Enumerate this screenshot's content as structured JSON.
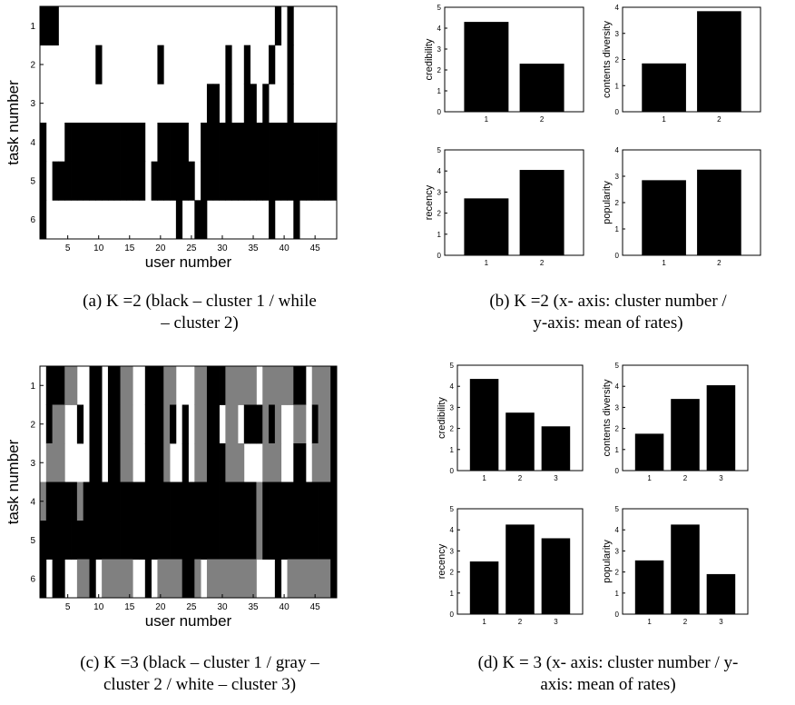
{
  "captions": {
    "a": [
      "(a)  K =2 (black – cluster 1 / while",
      "– cluster 2)"
    ],
    "b": [
      "(b)  K =2 (x- axis: cluster number /",
      "y-axis: mean of rates)"
    ],
    "c": [
      "(c) K =3 (black – cluster 1 / gray –",
      "cluster 2 / white – cluster 3)"
    ],
    "d": [
      "(d) K = 3 (x- axis: cluster number / y-",
      "axis: mean of rates)"
    ]
  },
  "colors": {
    "black": "#000000",
    "gray": "#808080",
    "white": "#ffffff"
  },
  "chart_data": [
    {
      "id": "a",
      "type": "heatmap",
      "xlabel": "user number",
      "ylabel": "task number",
      "x_ticks": [
        5,
        10,
        15,
        20,
        25,
        30,
        35,
        40,
        45
      ],
      "y_ticks": [
        1,
        2,
        3,
        4,
        5,
        6
      ],
      "n_users": 48,
      "n_tasks": 6,
      "legend_text": "black – cluster 1 / while – cluster 2",
      "rows": [
        "000000000000000000000000000000000000000000000000",
        "000000000000000000000000000000000000000000000000",
        "000000000000000000000000000000000000000000000000",
        "111111111111111111111111111111111111111111111111",
        "111111111111111111111111111111111111111111111111",
        "000000000000000000000000000000000000000000000000"
      ],
      "cells": {
        "1": [
          [
            1,
            2
          ],
          [
            3,
            3
          ],
          [
            39,
            39
          ],
          [
            41,
            41
          ]
        ],
        "2": [
          [
            10,
            10
          ],
          [
            20,
            20
          ],
          [
            31,
            31
          ],
          [
            34,
            34
          ],
          [
            38,
            38
          ],
          [
            41,
            41
          ]
        ],
        "3": [
          [
            28,
            28
          ],
          [
            29,
            29
          ],
          [
            31,
            31
          ],
          [
            34,
            34
          ],
          [
            35,
            35
          ],
          [
            37,
            37
          ],
          [
            41,
            41
          ]
        ],
        "4_white": [
          [
            2,
            4
          ],
          [
            18,
            19
          ],
          [
            25,
            26
          ]
        ],
        "5_white": [
          [
            2,
            2
          ],
          [
            18,
            18
          ],
          [
            26,
            26
          ]
        ],
        "6": [
          [
            1,
            1
          ],
          [
            23,
            23
          ],
          [
            26,
            26
          ],
          [
            27,
            27
          ],
          [
            38,
            38
          ],
          [
            42,
            42
          ]
        ]
      }
    },
    {
      "id": "b",
      "type": "bar",
      "categories": [
        "1",
        "2"
      ],
      "panels": [
        {
          "ylabel": "credibility",
          "values": [
            4.3,
            2.3
          ],
          "ylim": [
            0,
            5
          ],
          "yticks": [
            0,
            1,
            2,
            3,
            4,
            5
          ]
        },
        {
          "ylabel": "contents diversity",
          "values": [
            1.85,
            3.85
          ],
          "ylim": [
            0,
            4
          ],
          "yticks": [
            0,
            1,
            2,
            3,
            4
          ]
        },
        {
          "ylabel": "recency",
          "values": [
            2.7,
            4.05
          ],
          "ylim": [
            0,
            5
          ],
          "yticks": [
            0,
            1,
            2,
            3,
            4,
            5
          ]
        },
        {
          "ylabel": "popularity",
          "values": [
            2.85,
            3.25
          ],
          "ylim": [
            0,
            4
          ],
          "yticks": [
            0,
            1,
            2,
            3,
            4
          ]
        }
      ]
    },
    {
      "id": "c",
      "type": "heatmap",
      "xlabel": "user number",
      "ylabel": "task number",
      "x_ticks": [
        5,
        10,
        15,
        20,
        25,
        30,
        35,
        40,
        45
      ],
      "y_ticks": [
        1,
        2,
        3,
        4,
        5,
        6
      ],
      "n_users": 48,
      "n_tasks": 6,
      "legend_text": "black – cluster 1 / gray – cluster 2 / white – cluster 3",
      "rows": [
        "011122001101122001112200022111222220222221102221",
        "012200101101122001112101022110220111212002201221",
        "022200001101122001112001022111222000222001102221",
        "211111211111111111111111111111111112111111111111",
        "111111111111111111111111111111111112111111111111",
        "101100221022222001022221120222222220001022222221"
      ]
    },
    {
      "id": "d",
      "type": "bar",
      "categories": [
        "1",
        "2",
        "3"
      ],
      "panels": [
        {
          "ylabel": "credibility",
          "values": [
            4.35,
            2.75,
            2.1
          ],
          "ylim": [
            0,
            5
          ],
          "yticks": [
            0,
            1,
            2,
            3,
            4,
            5
          ]
        },
        {
          "ylabel": "contents diversity",
          "values": [
            1.75,
            3.4,
            4.05
          ],
          "ylim": [
            0,
            5
          ],
          "yticks": [
            0,
            1,
            2,
            3,
            4,
            5
          ]
        },
        {
          "ylabel": "recency",
          "values": [
            2.5,
            4.25,
            3.6
          ],
          "ylim": [
            0,
            5
          ],
          "yticks": [
            0,
            1,
            2,
            3,
            4,
            5
          ]
        },
        {
          "ylabel": "popularity",
          "values": [
            2.55,
            4.25,
            1.9
          ],
          "ylim": [
            0,
            5
          ],
          "yticks": [
            0,
            1,
            2,
            3,
            4,
            5
          ]
        }
      ]
    }
  ]
}
